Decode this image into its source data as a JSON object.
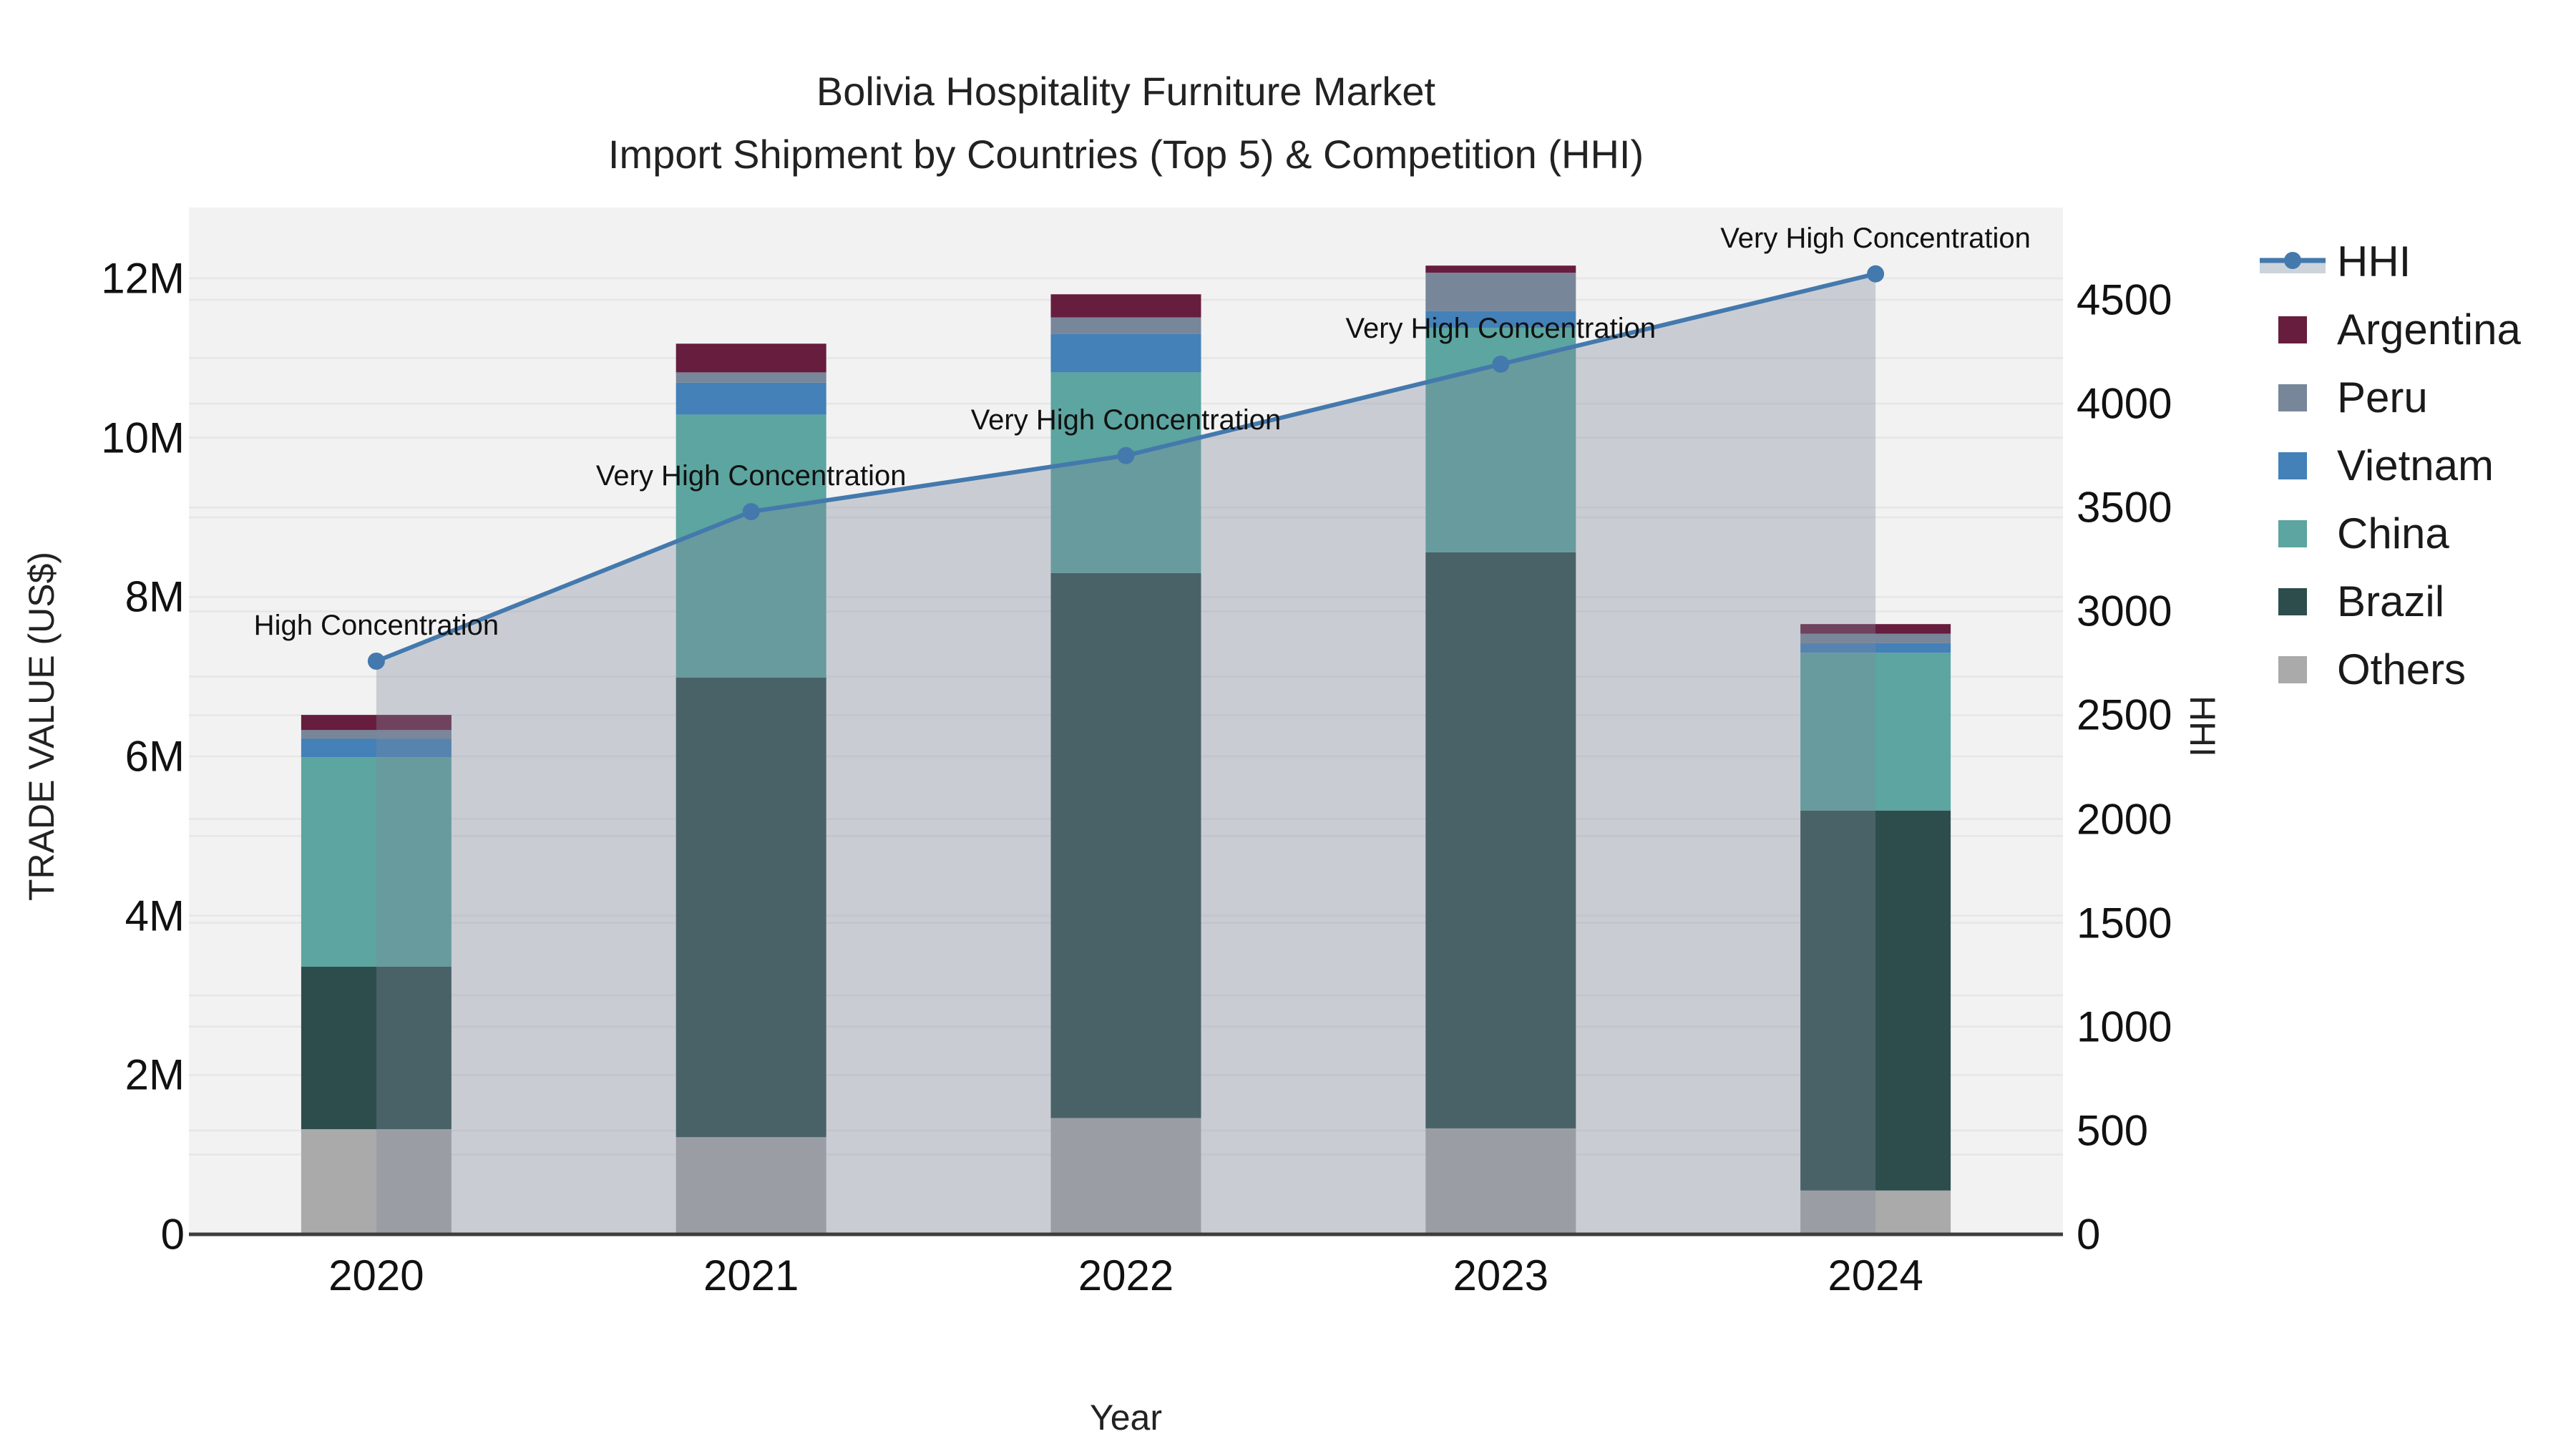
{
  "title": {
    "line1": "Bolivia Hospitality Furniture Market",
    "line2": "Import Shipment by Countries (Top 5) & Competition (HHI)"
  },
  "axes": {
    "x": {
      "label": "Year",
      "ticks": [
        "2020",
        "2021",
        "2022",
        "2023",
        "2024"
      ]
    },
    "y_left": {
      "label": "TRADE VALUE (US$)",
      "tick_labels": [
        "0",
        "2M",
        "4M",
        "6M",
        "8M",
        "10M",
        "12M"
      ],
      "tick_values_musd": [
        0,
        2,
        4,
        6,
        8,
        10,
        12
      ],
      "range_musd": [
        0,
        12.9
      ]
    },
    "y_right": {
      "label": "HHI",
      "tick_labels": [
        "0",
        "500",
        "1000",
        "1500",
        "2000",
        "2500",
        "3000",
        "3500",
        "4000",
        "4500"
      ],
      "tick_values": [
        0,
        500,
        1000,
        1500,
        2000,
        2500,
        3000,
        3500,
        4000,
        4500
      ],
      "range": [
        0,
        4830
      ]
    }
  },
  "legend": {
    "items": [
      {
        "label": "HHI",
        "type": "line",
        "color": "#4479ad",
        "fill": "#ccd3db"
      },
      {
        "label": "Argentina",
        "type": "square",
        "color": "#671d3d"
      },
      {
        "label": "Peru",
        "type": "square",
        "color": "#78869a"
      },
      {
        "label": "Vietnam",
        "type": "square",
        "color": "#4381b8"
      },
      {
        "label": "China",
        "type": "square",
        "color": "#5ca5a0"
      },
      {
        "label": "Brazil",
        "type": "square",
        "color": "#2d4d4d"
      },
      {
        "label": "Others",
        "type": "square",
        "color": "#aaaaaa"
      }
    ]
  },
  "chart_data": {
    "type": "combo: stacked bar (trade value) + line with area (HHI)",
    "categories": [
      "2020",
      "2021",
      "2022",
      "2023",
      "2024"
    ],
    "bar_unit": "million US$",
    "stack_order_bottom_to_top": [
      "Others",
      "Brazil",
      "China",
      "Vietnam",
      "Peru",
      "Argentina"
    ],
    "series": [
      {
        "name": "Others",
        "color": "#aaaaaa",
        "values_musd": [
          1.32,
          1.22,
          1.46,
          1.33,
          0.55
        ]
      },
      {
        "name": "Brazil",
        "color": "#2d4d4d",
        "values_musd": [
          2.04,
          5.77,
          6.84,
          7.23,
          4.77
        ]
      },
      {
        "name": "China",
        "color": "#5ca5a0",
        "values_musd": [
          2.63,
          3.3,
          2.52,
          2.82,
          1.98
        ]
      },
      {
        "name": "Vietnam",
        "color": "#4381b8",
        "values_musd": [
          0.23,
          0.4,
          0.48,
          0.21,
          0.12
        ]
      },
      {
        "name": "Peru",
        "color": "#78869a",
        "values_musd": [
          0.11,
          0.13,
          0.21,
          0.48,
          0.12
        ]
      },
      {
        "name": "Argentina",
        "color": "#671d3d",
        "values_musd": [
          0.19,
          0.36,
          0.29,
          0.09,
          0.12
        ]
      }
    ],
    "bar_totals_musd": [
      6.52,
      11.18,
      11.8,
      12.16,
      7.66
    ],
    "line_series": {
      "name": "HHI",
      "axis": "right",
      "values": [
        2760,
        3480,
        3750,
        4190,
        4625
      ],
      "color": "#4479ad",
      "marker_radius": 12,
      "line_width": 6,
      "area_fill": "rgba(125,138,155,0.35)"
    },
    "annotations": [
      {
        "category": "2020",
        "text": "High Concentration"
      },
      {
        "category": "2021",
        "text": "Very High Concentration"
      },
      {
        "category": "2022",
        "text": "Very High Concentration"
      },
      {
        "category": "2023",
        "text": "Very High Concentration"
      },
      {
        "category": "2024",
        "text": "Very High Concentration"
      }
    ],
    "layout_hints": {
      "plot_bg": "#f2f2f2",
      "grid_color": "#e6e6e6",
      "axis_line_color": "#3d3d3d",
      "grid_left_step_musd": 1,
      "grid_right_step": 500,
      "legend_position": "right"
    }
  }
}
